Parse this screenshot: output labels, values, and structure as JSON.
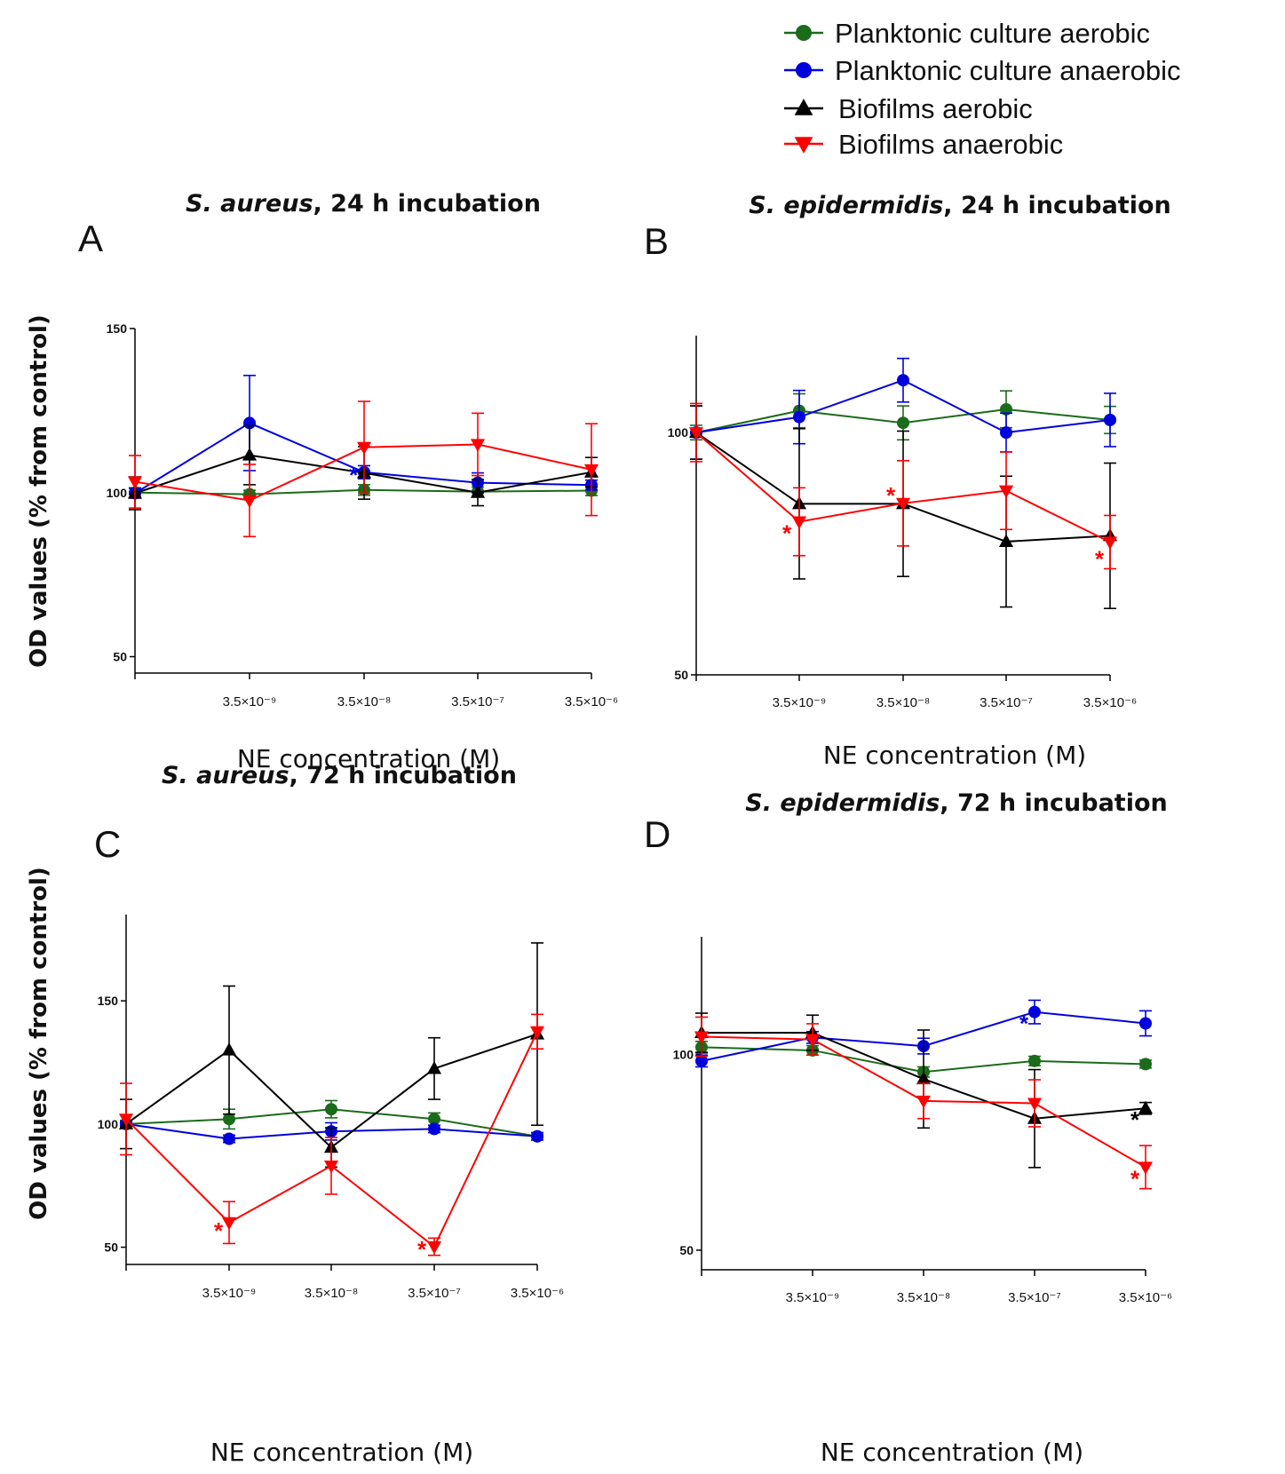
{
  "legend": [
    {
      "label": "Planktonic culture aerobic",
      "color": "#1a6b1a",
      "marker": "circle"
    },
    {
      "label": "Planktonic culture anaerobic",
      "color": "#0000dd",
      "marker": "circle"
    },
    {
      "label": "Biofilms aerobic",
      "color": "#000000",
      "marker": "triangle-up"
    },
    {
      "label": "Biofilms anaerobic",
      "color": "#ff0000",
      "marker": "triangle-down"
    }
  ],
  "chart_data": [
    {
      "type": "line",
      "panel": "A",
      "title_italic": "S. aureus",
      "title_rest": ", 24 h incubation",
      "xlabel": "NE concentration (M)",
      "ylabel": "OD values (% from control)",
      "ylim": [
        45,
        150
      ],
      "yticks": [
        "50",
        "100",
        "150"
      ],
      "ytick_values": [
        50,
        100,
        150
      ],
      "categories": [
        "",
        "3.5×10⁻⁹",
        "3.5×10⁻⁸",
        "3.5×10⁻⁷",
        "3.5×10⁻⁶"
      ],
      "series": [
        {
          "name": "Planktonic culture aerobic",
          "values": [
            100,
            99.5,
            100.8,
            100.3,
            100.6
          ],
          "err": [
            1.5,
            1.2,
            1.6,
            1.4,
            1.5
          ]
        },
        {
          "name": "Planktonic culture anaerobic",
          "values": [
            99.8,
            121.2,
            106.2,
            103,
            102.3
          ],
          "err": [
            1.5,
            14.5,
            2,
            3,
            1.5
          ]
        },
        {
          "name": "Biofilms aerobic",
          "values": [
            99.8,
            111.4,
            106,
            100,
            106.2
          ],
          "err": [
            5,
            9,
            8,
            4,
            4.5
          ]
        },
        {
          "name": "Biofilms anaerobic",
          "values": [
            103.3,
            97.6,
            113.8,
            114.7,
            107
          ],
          "err": [
            8,
            11,
            14,
            9.5,
            14
          ]
        }
      ],
      "annotations": [
        {
          "text": "*",
          "series": 1,
          "index": 2
        }
      ]
    },
    {
      "type": "line",
      "panel": "B",
      "title_italic": "S. epidermidis",
      "title_rest": ", 24 h incubation",
      "xlabel": "NE concentration (M)",
      "ylabel": "",
      "ylim": [
        50,
        120
      ],
      "yticks": [
        "50",
        "100"
      ],
      "ytick_values": [
        50,
        100
      ],
      "categories": [
        "",
        "3.5×10⁻⁹",
        "3.5×10⁻⁸",
        "3.5×10⁻⁷",
        "3.5×10⁻⁶"
      ],
      "series": [
        {
          "name": "Planktonic culture aerobic",
          "values": [
            100,
            104.5,
            102,
            104.8,
            102.6
          ],
          "err": [
            1.5,
            3.5,
            3.5,
            3.8,
            2.8
          ]
        },
        {
          "name": "Planktonic culture anaerobic",
          "values": [
            100,
            103.2,
            110.8,
            100,
            102.6
          ],
          "err": [
            5.5,
            5.5,
            4.5,
            4,
            5.5
          ]
        },
        {
          "name": "Biofilms aerobic",
          "values": [
            100,
            85.3,
            85.3,
            77.5,
            78.7
          ],
          "err": [
            5.5,
            15.5,
            15,
            13.5,
            15
          ]
        },
        {
          "name": "Biofilms anaerobic",
          "values": [
            100,
            81.6,
            85.4,
            88,
            77.4
          ],
          "err": [
            6,
            7,
            8.8,
            8,
            5.5
          ]
        }
      ],
      "annotations": [
        {
          "text": "*",
          "series": 3,
          "index": 1
        },
        {
          "text": "*",
          "series": 3,
          "index": 2
        },
        {
          "text": "*",
          "series": 3,
          "index": 4
        }
      ]
    },
    {
      "type": "line",
      "panel": "C",
      "title_italic": "S. aureus",
      "title_rest": ", 72 h incubation",
      "xlabel": "NE concentration (M)",
      "ylabel": "OD values (% from control)",
      "ylim": [
        43,
        185
      ],
      "yticks": [
        "50",
        "100",
        "150"
      ],
      "ytick_values": [
        50,
        100,
        150
      ],
      "categories": [
        "",
        "3.5×10⁻⁹",
        "3.5×10⁻⁸",
        "3.5×10⁻⁷",
        "3.5×10⁻⁶"
      ],
      "series": [
        {
          "name": "Planktonic culture aerobic",
          "values": [
            100,
            102,
            106,
            102,
            95
          ],
          "err": [
            1.5,
            4,
            3.5,
            2.5,
            1.5
          ]
        },
        {
          "name": "Planktonic culture anaerobic",
          "values": [
            100,
            94,
            97,
            98,
            95
          ],
          "err": [
            1,
            1.5,
            3.5,
            1.5,
            1.5
          ]
        },
        {
          "name": "Biofilms aerobic",
          "values": [
            100,
            130,
            90.5,
            122.5,
            136.5
          ],
          "err": [
            10,
            26,
            8,
            12.5,
            37
          ]
        },
        {
          "name": "Biofilms anaerobic",
          "values": [
            102,
            60,
            83,
            50.2,
            137.5
          ],
          "err": [
            14.5,
            8.5,
            11.5,
            3.5,
            7
          ]
        }
      ],
      "annotations": [
        {
          "text": "*",
          "series": 3,
          "index": 1
        },
        {
          "text": "*",
          "series": 3,
          "index": 3
        }
      ]
    },
    {
      "type": "line",
      "panel": "D",
      "title_italic": "S. epidermidis",
      "title_rest": ", 72 h incubation",
      "xlabel": "NE concentration (M)",
      "ylabel": "",
      "ylim": [
        45,
        130
      ],
      "yticks": [
        "50",
        "100"
      ],
      "ytick_values": [
        50,
        100
      ],
      "categories": [
        "",
        "3.5×10⁻⁹",
        "3.5×10⁻⁸",
        "3.5×10⁻⁷",
        "3.5×10⁻⁶"
      ],
      "series": [
        {
          "name": "Planktonic culture aerobic",
          "values": [
            101.8,
            101,
            95.5,
            98.3,
            97.5
          ],
          "err": [
            1.5,
            1.2,
            1.3,
            1.2,
            1.0
          ]
        },
        {
          "name": "Planktonic culture anaerobic",
          "values": [
            98.3,
            104.3,
            102.1,
            110.8,
            107.9
          ],
          "err": [
            1.5,
            1.5,
            2,
            3,
            3.2
          ]
        },
        {
          "name": "Biofilms aerobic",
          "values": [
            105.5,
            105.5,
            93.7,
            83.6,
            86.2
          ],
          "err": [
            5,
            4.5,
            12.5,
            12.5,
            1.5
          ]
        },
        {
          "name": "Biofilms anaerobic",
          "values": [
            104.5,
            103.8,
            88.1,
            87.5,
            71.2
          ],
          "err": [
            5,
            4,
            4.5,
            6,
            5.5
          ]
        }
      ],
      "annotations": [
        {
          "text": "*",
          "series": 1,
          "index": 3
        },
        {
          "text": "*",
          "series": 2,
          "index": 4
        },
        {
          "text": "*",
          "series": 3,
          "index": 4
        }
      ]
    }
  ]
}
